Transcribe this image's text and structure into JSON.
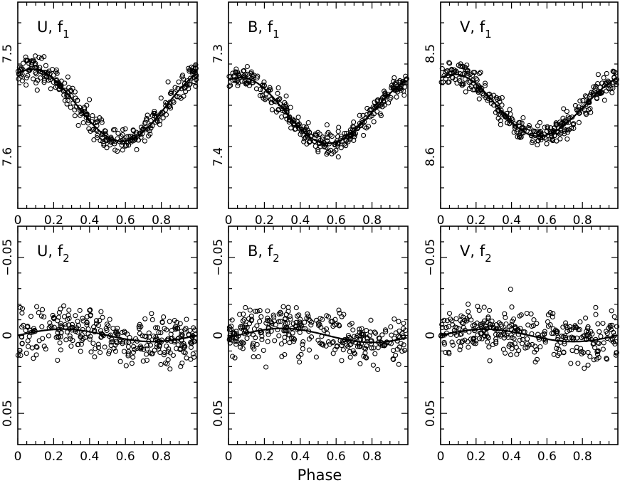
{
  "figure": {
    "xlabel": "Phase"
  },
  "chart_data": [
    {
      "type": "scatter",
      "band": "U",
      "freq": "1",
      "label": "U, f1",
      "xlim": [
        0,
        1
      ],
      "ylim": [
        7.45,
        7.65
      ],
      "y_inverted": true,
      "xticks": [
        "0",
        "0.2",
        "0.4",
        "0.6",
        "0.8"
      ],
      "yticks": [
        {
          "v": 7.5,
          "label": "7.5"
        },
        {
          "v": 7.6,
          "label": "7.6"
        }
      ],
      "model": {
        "mean": 7.55,
        "amp": 0.035,
        "x_max": 0.08,
        "x_min": 0.58
      },
      "scatter_sd": 0.006,
      "series": [
        {
          "x": [
            0.0,
            0.1,
            0.2,
            0.3,
            0.4,
            0.5,
            0.58,
            0.7,
            0.8,
            0.9,
            0.99
          ],
          "y": [
            7.524,
            7.518,
            7.53,
            7.55,
            7.575,
            7.587,
            7.59,
            7.578,
            7.56,
            7.54,
            7.527
          ]
        }
      ]
    },
    {
      "type": "scatter",
      "band": "B",
      "freq": "1",
      "label": "B, f1",
      "xlim": [
        0,
        1
      ],
      "ylim": [
        7.25,
        7.45
      ],
      "y_inverted": true,
      "xticks": [
        "0",
        "0.2",
        "0.4",
        "0.6",
        "0.8"
      ],
      "yticks": [
        {
          "v": 7.3,
          "label": "7.3"
        },
        {
          "v": 7.4,
          "label": "7.4"
        }
      ],
      "model": {
        "mean": 7.355,
        "amp": 0.032,
        "x_max": 0.07,
        "x_min": 0.55
      },
      "scatter_sd": 0.006,
      "series": [
        {
          "x": [
            0.0,
            0.1,
            0.2,
            0.3,
            0.4,
            0.5,
            0.55,
            0.7,
            0.8,
            0.9,
            0.99
          ],
          "y": [
            7.328,
            7.323,
            7.333,
            7.352,
            7.375,
            7.385,
            7.387,
            7.375,
            7.36,
            7.342,
            7.33
          ]
        }
      ]
    },
    {
      "type": "scatter",
      "band": "V",
      "freq": "1",
      "label": "V, f1",
      "xlim": [
        0,
        1
      ],
      "ylim": [
        8.45,
        8.65
      ],
      "y_inverted": true,
      "xticks": [
        "0",
        "0.2",
        "0.4",
        "0.6",
        "0.8"
      ],
      "yticks": [
        {
          "v": 8.5,
          "label": "8.5"
        },
        {
          "v": 8.6,
          "label": "8.6"
        }
      ],
      "model": {
        "mean": 8.55,
        "amp": 0.03,
        "x_max": 0.08,
        "x_min": 0.55
      },
      "scatter_sd": 0.006,
      "series": [
        {
          "x": [
            0.0,
            0.1,
            0.2,
            0.3,
            0.4,
            0.5,
            0.55,
            0.7,
            0.8,
            0.9,
            0.99
          ],
          "y": [
            8.525,
            8.52,
            8.53,
            8.548,
            8.57,
            8.58,
            8.582,
            8.57,
            8.555,
            8.538,
            8.527
          ]
        }
      ]
    },
    {
      "type": "scatter",
      "band": "U",
      "freq": "2",
      "label": "U, f2",
      "xlim": [
        0,
        1
      ],
      "ylim": [
        -0.07,
        0.07
      ],
      "y_inverted": true,
      "xticks": [
        "0",
        "0.2",
        "0.4",
        "0.6",
        "0.8"
      ],
      "yticks": [
        {
          "v": -0.05,
          "label": "−0.05"
        },
        {
          "v": 0,
          "label": "0"
        },
        {
          "v": 0.05,
          "label": "0.05"
        }
      ],
      "model": {
        "mean": 0.0,
        "amp": 0.004,
        "x_max": 0.25,
        "x_min": 0.75
      },
      "scatter_sd": 0.0075,
      "series": [
        {
          "x": [
            0.0,
            0.25,
            0.5,
            0.75,
            0.99
          ],
          "y": [
            0.0,
            -0.004,
            0.0,
            0.004,
            0.0
          ]
        }
      ]
    },
    {
      "type": "scatter",
      "band": "B",
      "freq": "2",
      "label": "B, f2",
      "xlim": [
        0,
        1
      ],
      "ylim": [
        -0.07,
        0.07
      ],
      "y_inverted": true,
      "xticks": [
        "0",
        "0.2",
        "0.4",
        "0.6",
        "0.8"
      ],
      "yticks": [
        {
          "v": -0.05,
          "label": "−0.05"
        },
        {
          "v": 0,
          "label": "0"
        },
        {
          "v": 0.05,
          "label": "0.05"
        }
      ],
      "model": {
        "mean": 0.0,
        "amp": 0.0045,
        "x_max": 0.3,
        "x_min": 0.8
      },
      "scatter_sd": 0.0075,
      "series": [
        {
          "x": [
            0.0,
            0.3,
            0.55,
            0.8,
            0.99
          ],
          "y": [
            0.001,
            -0.0045,
            0.0,
            0.0045,
            0.001
          ]
        }
      ]
    },
    {
      "type": "scatter",
      "band": "V",
      "freq": "2",
      "label": "V, f2",
      "xlim": [
        0,
        1
      ],
      "ylim": [
        -0.07,
        0.07
      ],
      "y_inverted": true,
      "xticks": [
        "0",
        "0.2",
        "0.4",
        "0.6",
        "0.8"
      ],
      "yticks": [
        {
          "v": -0.05,
          "label": "−0.05"
        },
        {
          "v": 0,
          "label": "0"
        },
        {
          "v": 0.05,
          "label": "0.05"
        }
      ],
      "model": {
        "mean": 0.0,
        "amp": 0.004,
        "x_max": 0.25,
        "x_min": 0.75
      },
      "scatter_sd": 0.0075,
      "series": [
        {
          "x": [
            0.0,
            0.25,
            0.5,
            0.75,
            0.99
          ],
          "y": [
            0.0,
            -0.004,
            0.0,
            0.004,
            0.0
          ]
        }
      ]
    }
  ]
}
